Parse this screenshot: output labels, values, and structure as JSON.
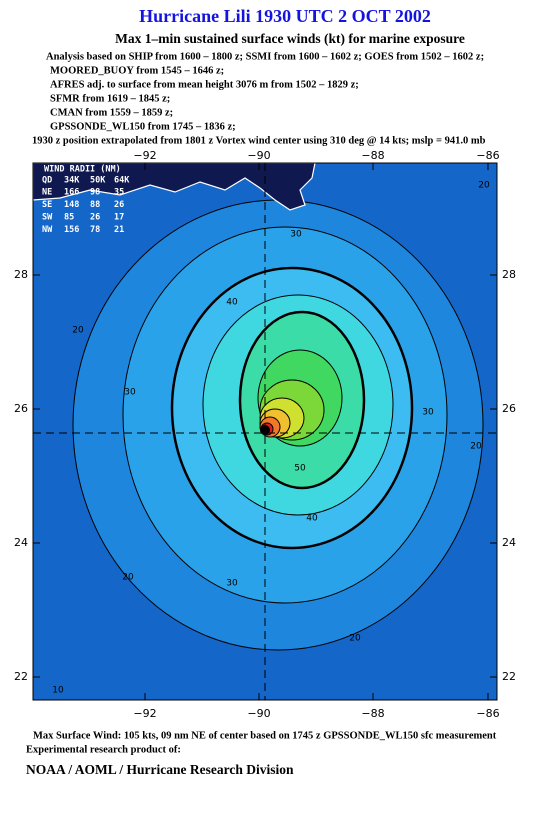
{
  "header": {
    "title": "Hurricane Lili 1930 UTC 2 OCT 2002",
    "subtitle": "Max 1–min sustained surface winds (kt) for marine exposure",
    "lines": [
      "Analysis based on  SHIP from 1600 – 1800 z;  SSMI from 1600 – 1602 z;  GOES from 1502 – 1602 z;",
      "MOORED_BUOY from 1545 – 1646 z;",
      "AFRES adj. to surface from mean height 3076 m from 1502 – 1829 z;",
      "SFMR from 1619 – 1845 z;",
      "CMAN from 1559 – 1859 z;",
      "GPSSONDE_WL150 from 1745 – 1836 z;"
    ],
    "position_note": "1930 z position extrapolated from 1801 z Vortex wind center using 310 deg @ 14 kts; mslp = 941.0 mb"
  },
  "map": {
    "lon_labels": [
      "−92",
      "−90",
      "−88",
      "−86"
    ],
    "lat_labels": [
      "28",
      "26",
      "24",
      "22"
    ],
    "wind_radii": {
      "title": "WIND RADII (NM)",
      "columns": [
        "QD",
        "34K",
        "50K",
        "64K"
      ],
      "rows": [
        [
          "NE",
          "166",
          "98",
          "35"
        ],
        [
          "SE",
          "148",
          "88",
          "26"
        ],
        [
          "SW",
          "85",
          "26",
          "17"
        ],
        [
          "NW",
          "156",
          "78",
          "21"
        ]
      ]
    },
    "contour_labels": [
      "30",
      "40",
      "30",
      "20",
      "50",
      "40",
      "30",
      "20",
      "20",
      "30",
      "20",
      "20",
      "10"
    ]
  },
  "footer": {
    "max_wind": "Max Surface Wind: 105 kts, 09 nm NE of center based on 1745 z GPSSONDE_WL150 sfc measurement",
    "product": "Experimental research product of:",
    "org": "NOAA / AOML / Hurricane Research Division"
  }
}
